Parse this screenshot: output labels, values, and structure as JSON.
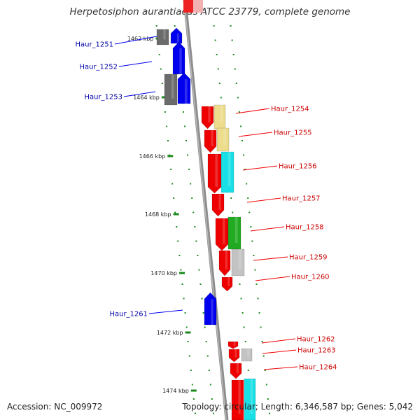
{
  "title": "Herpetosiphon aurantiacus ATCC 23779, complete genome",
  "footer": {
    "accession": "Accession: NC_009972",
    "summary": "Topology: circular; Length: 6,346,587 bp; Genes: 5,042"
  },
  "colors": {
    "backbone": "#8c8c8c",
    "tick": "#1d8a1d",
    "forward_gene": "#0000ee",
    "forward_label": "#0000aa",
    "reverse_gene": "#ee0000",
    "reverse_label": "#cc0000",
    "gray_feature": "#6b6b6b",
    "khaki_feature": "#ecdc8c",
    "cyan_feature": "#19e0e6",
    "green_feature": "#22aa22",
    "lightgray_feature": "#c3c3c3"
  },
  "kbp_marks": [
    {
      "label": "1462 kbp"
    },
    {
      "label": "1464 kbp"
    },
    {
      "label": "1466 kbp"
    },
    {
      "label": "1468 kbp"
    },
    {
      "label": "1470 kbp"
    },
    {
      "label": "1472 kbp"
    },
    {
      "label": "1474 kbp"
    }
  ],
  "genes": [
    {
      "label": "Haur_1251",
      "strand": "forward"
    },
    {
      "label": "Haur_1252",
      "strand": "forward"
    },
    {
      "label": "Haur_1253",
      "strand": "forward"
    },
    {
      "label": "Haur_1254",
      "strand": "reverse"
    },
    {
      "label": "Haur_1255",
      "strand": "reverse"
    },
    {
      "label": "Haur_1256",
      "strand": "reverse"
    },
    {
      "label": "Haur_1257",
      "strand": "reverse"
    },
    {
      "label": "Haur_1258",
      "strand": "reverse"
    },
    {
      "label": "Haur_1259",
      "strand": "reverse"
    },
    {
      "label": "Haur_1260",
      "strand": "reverse"
    },
    {
      "label": "Haur_1261",
      "strand": "forward"
    },
    {
      "label": "Haur_1262",
      "strand": "reverse"
    },
    {
      "label": "Haur_1263",
      "strand": "reverse"
    },
    {
      "label": "Haur_1264",
      "strand": "reverse"
    }
  ]
}
